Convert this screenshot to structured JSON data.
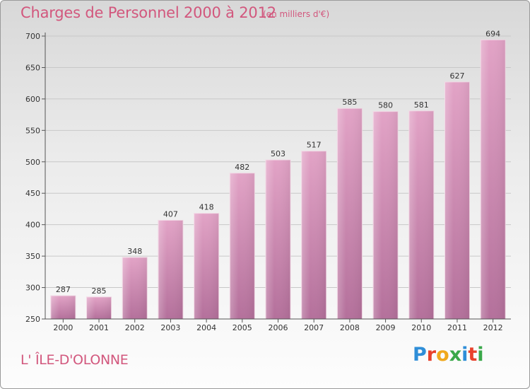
{
  "header": {
    "title": "Charges de Personnel 2000 à 2012",
    "subtitle": "(en milliers d'€)"
  },
  "footer": {
    "place": "L' ÎLE-D'OLONNE",
    "logo_letters": [
      {
        "ch": "P",
        "color": "#2f8ed8"
      },
      {
        "ch": "r",
        "color": "#e8412c"
      },
      {
        "ch": "o",
        "color": "#f0a81c"
      },
      {
        "ch": "x",
        "color": "#3aa84a"
      },
      {
        "ch": "i",
        "color": "#2f8ed8"
      },
      {
        "ch": "t",
        "color": "#e8412c"
      },
      {
        "ch": "i",
        "color": "#3aa84a"
      }
    ]
  },
  "chart_data": {
    "type": "bar",
    "categories": [
      "2000",
      "2001",
      "2002",
      "2003",
      "2004",
      "2005",
      "2006",
      "2007",
      "2008",
      "2009",
      "2010",
      "2011",
      "2012"
    ],
    "values": [
      287,
      285,
      348,
      407,
      418,
      482,
      503,
      517,
      585,
      580,
      581,
      627,
      694
    ],
    "data_labels": [
      "287",
      "285",
      "348",
      "407",
      "418",
      "482",
      "503",
      "517",
      "585",
      "580",
      "581",
      "627",
      "694"
    ],
    "yticks": [
      250,
      300,
      350,
      400,
      450,
      500,
      550,
      600,
      650,
      700
    ],
    "ylim": [
      250,
      710
    ],
    "grid": true,
    "bar_color": "#d97fa9"
  }
}
